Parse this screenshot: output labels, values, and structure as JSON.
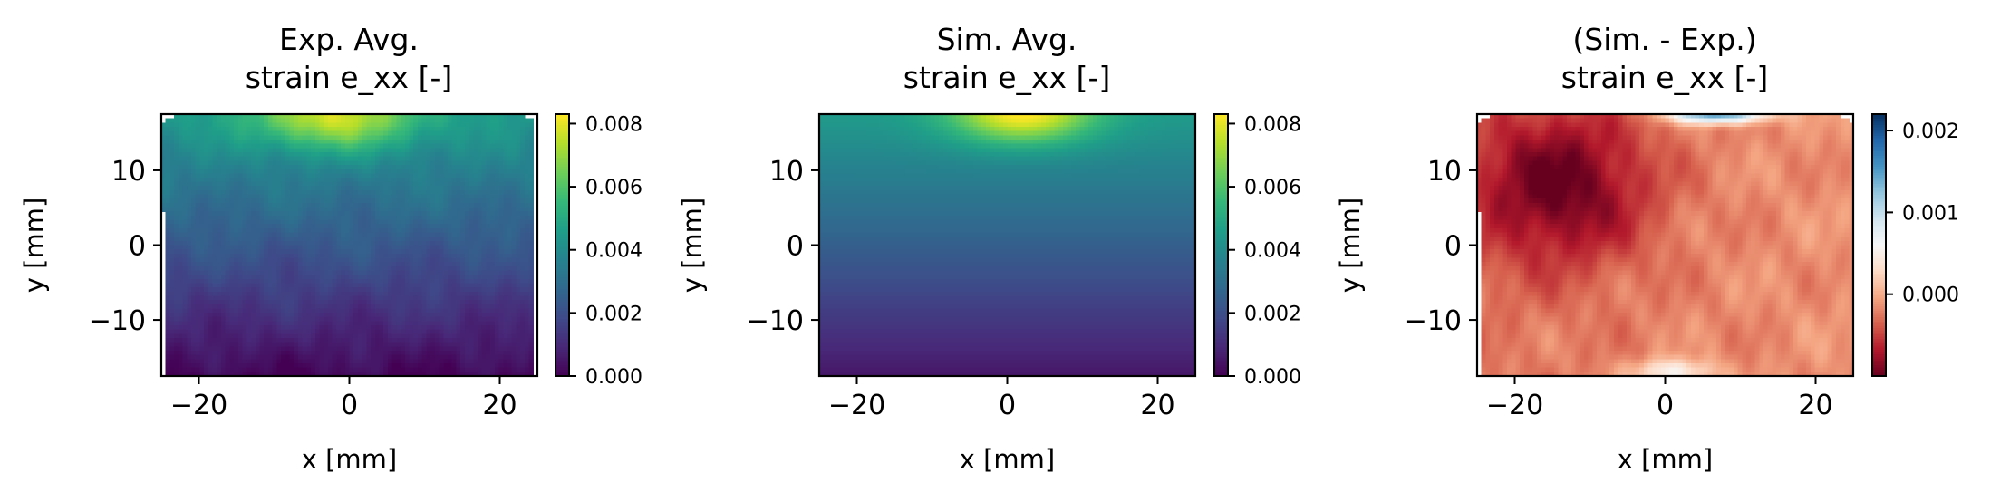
{
  "chart_data": [
    {
      "type": "heatmap",
      "title": "Exp. Avg.\nstrain e_xx [-]",
      "title_lines": [
        "Exp. Avg.",
        "strain e_xx [-]"
      ],
      "xlabel": "x [mm]",
      "ylabel": "y [mm]",
      "xlim": [
        -25,
        25
      ],
      "ylim": [
        -17.5,
        17.5
      ],
      "xticks": [
        -20,
        0,
        20
      ],
      "xtick_labels": [
        "−20",
        "0",
        "20"
      ],
      "yticks": [
        -10,
        0,
        10
      ],
      "ytick_labels": [
        "−10",
        "0",
        "10"
      ],
      "colormap": "viridis",
      "colorbar": {
        "range": [
          0.0,
          0.0083
        ],
        "ticks": [
          0.0,
          0.002,
          0.004,
          0.006,
          0.008
        ],
        "tick_labels": [
          "0.000",
          "0.002",
          "0.004",
          "0.006",
          "0.008"
        ]
      },
      "field": "experimental, noisy; peak ~0.008 near top center (x~-2, y~17), falling to ~0 at bottom; sparse missing data at left edge below y~4 and at top corners",
      "samples": [
        {
          "x": 0,
          "y": 16,
          "value": 0.0078
        },
        {
          "x": -15,
          "y": 12,
          "value": 0.0052
        },
        {
          "x": 15,
          "y": 12,
          "value": 0.005
        },
        {
          "x": 0,
          "y": 0,
          "value": 0.0034
        },
        {
          "x": 0,
          "y": -10,
          "value": 0.0015
        },
        {
          "x": 0,
          "y": -17,
          "value": 0.0002
        }
      ]
    },
    {
      "type": "heatmap",
      "title": "Sim. Avg.\nstrain e_xx [-]",
      "title_lines": [
        "Sim. Avg.",
        "strain e_xx [-]"
      ],
      "xlabel": "x [mm]",
      "ylabel": "y [mm]",
      "xlim": [
        -25,
        25
      ],
      "ylim": [
        -17.5,
        17.5
      ],
      "xticks": [
        -20,
        0,
        20
      ],
      "xtick_labels": [
        "−20",
        "0",
        "20"
      ],
      "yticks": [
        -10,
        0,
        10
      ],
      "ytick_labels": [
        "−10",
        "0",
        "10"
      ],
      "colormap": "viridis",
      "colorbar": {
        "range": [
          0.0,
          0.0083
        ],
        "ticks": [
          0.0,
          0.002,
          0.004,
          0.006,
          0.008
        ],
        "tick_labels": [
          "0.000",
          "0.002",
          "0.004",
          "0.006",
          "0.008"
        ]
      },
      "field": "smooth simulation; vertical gradient from ~0.0005 at bottom to ~0.0045 at top with a local peak ~0.0083 at top center (x~2, y~17.5)",
      "samples": [
        {
          "x": 2,
          "y": 17.5,
          "value": 0.0083
        },
        {
          "x": -20,
          "y": 15,
          "value": 0.0045
        },
        {
          "x": 0,
          "y": 0,
          "value": 0.0029
        },
        {
          "x": 0,
          "y": -10,
          "value": 0.0013
        },
        {
          "x": 0,
          "y": -17,
          "value": 0.0005
        }
      ]
    },
    {
      "type": "heatmap",
      "title": "(Sim. - Exp.)\nstrain e_xx [-]",
      "title_lines": [
        "(Sim. - Exp.)",
        "strain e_xx [-]"
      ],
      "xlabel": "x [mm]",
      "ylabel": "y [mm]",
      "xlim": [
        -25,
        25
      ],
      "ylim": [
        -17.5,
        17.5
      ],
      "xticks": [
        -20,
        0,
        20
      ],
      "xtick_labels": [
        "−20",
        "0",
        "20"
      ],
      "yticks": [
        -10,
        0,
        10
      ],
      "ytick_labels": [
        "−10",
        "0",
        "10"
      ],
      "colormap": "RdBu",
      "colorbar": {
        "range": [
          -0.001,
          0.0022
        ],
        "ticks": [
          0.0,
          0.001,
          0.002
        ],
        "tick_labels": [
          "0.000",
          "0.001",
          "0.002"
        ]
      },
      "field": "difference; mostly negative (red), strongest ~-0.001 in upper-left region (x~-15, y~8); near zero on the right; slightly positive (blue) at top edge (x~5..10, y~17) and bottom center (x~0, y~-16)",
      "samples": [
        {
          "x": -15,
          "y": 10,
          "value": -0.0009
        },
        {
          "x": -18,
          "y": -5,
          "value": -0.0006
        },
        {
          "x": 15,
          "y": 0,
          "value": -0.0003
        },
        {
          "x": 7,
          "y": 17,
          "value": 0.0012
        },
        {
          "x": 0,
          "y": -16,
          "value": 0.0003
        }
      ]
    }
  ]
}
